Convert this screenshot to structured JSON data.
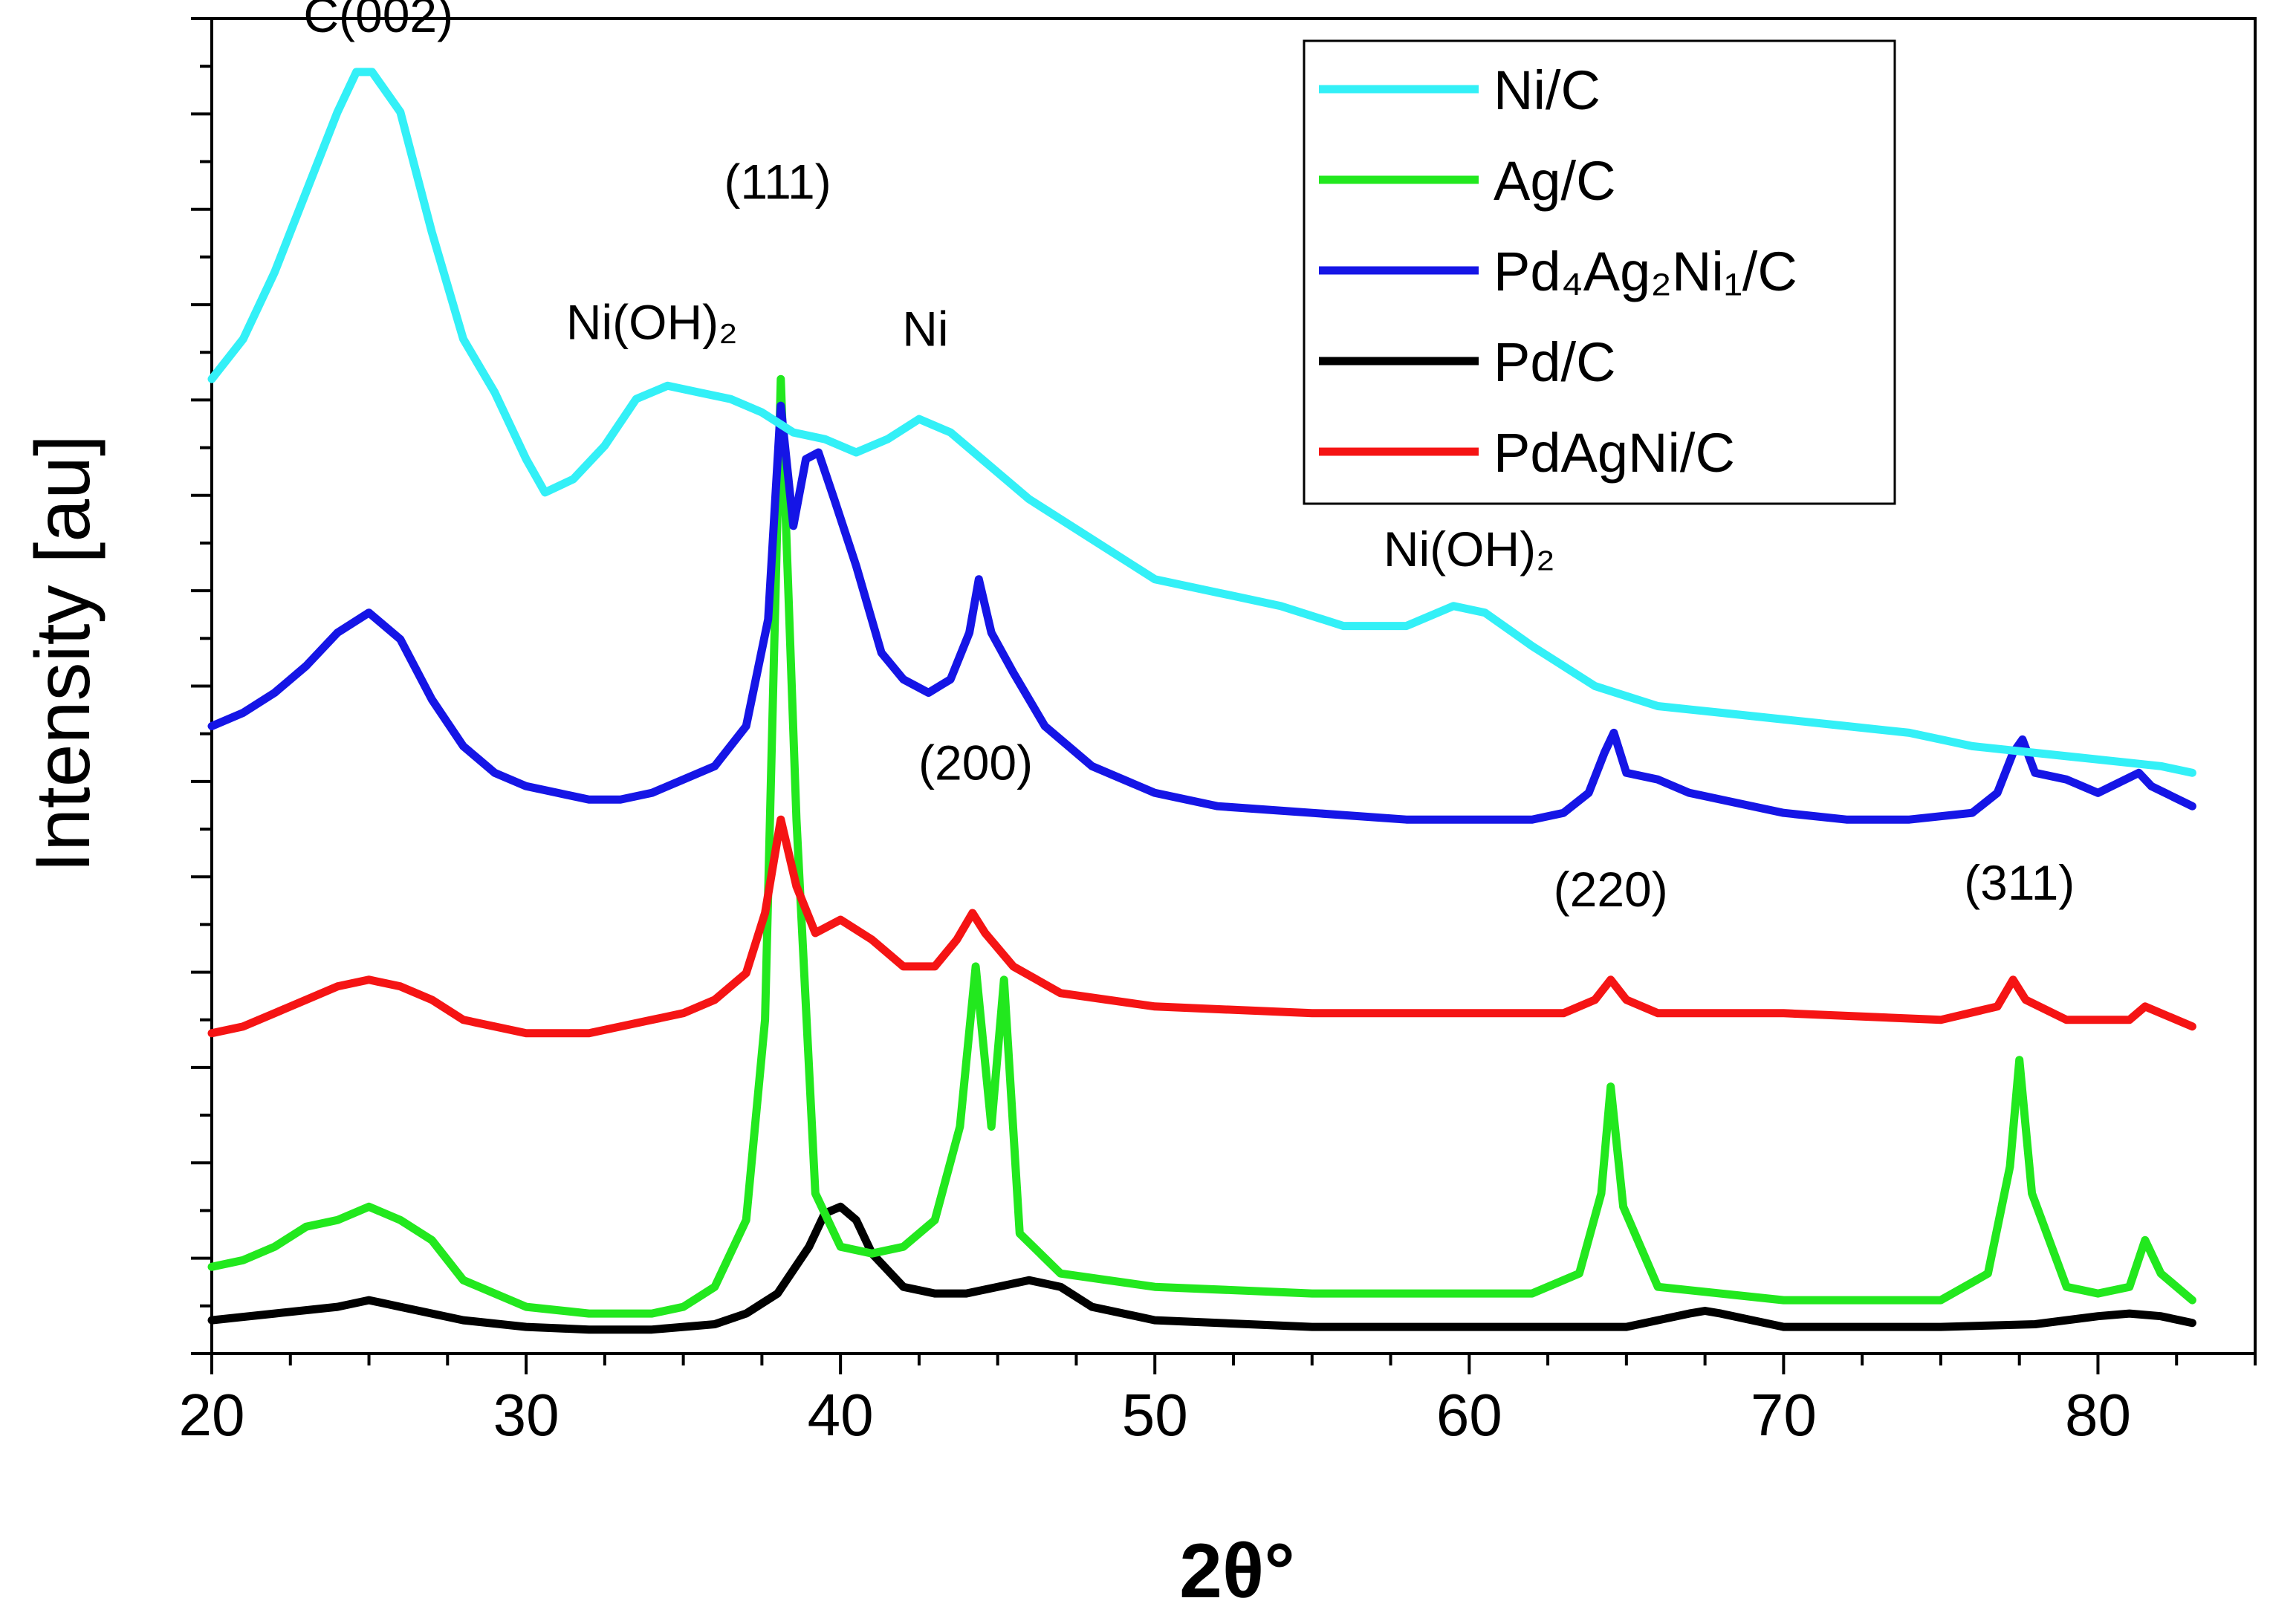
{
  "chart_data": {
    "type": "line",
    "title": "",
    "xlabel": "2θ°",
    "ylabel": "Intensity [au]",
    "xlim": [
      20,
      85
    ],
    "ylim": [
      0,
      100
    ],
    "xticks": [
      20,
      30,
      40,
      50,
      60,
      70,
      80
    ],
    "y_tick_labels_shown": false,
    "grid": false,
    "legend_position": "top-right",
    "series": [
      {
        "name": "Ni/C",
        "color": "#33f0f7",
        "points": [
          [
            20,
            73
          ],
          [
            21,
            76
          ],
          [
            22,
            81
          ],
          [
            23,
            87
          ],
          [
            24,
            93
          ],
          [
            24.6,
            96
          ],
          [
            25.1,
            96
          ],
          [
            26,
            93
          ],
          [
            27,
            84
          ],
          [
            28,
            76
          ],
          [
            29,
            72
          ],
          [
            30,
            67
          ],
          [
            30.6,
            64.5
          ],
          [
            31.5,
            65.5
          ],
          [
            32.5,
            68
          ],
          [
            33.5,
            71.5
          ],
          [
            34.5,
            72.5
          ],
          [
            35.5,
            72
          ],
          [
            36.5,
            71.5
          ],
          [
            37.5,
            70.5
          ],
          [
            38.5,
            69
          ],
          [
            39.5,
            68.5
          ],
          [
            40.5,
            67.5
          ],
          [
            41.5,
            68.5
          ],
          [
            42.5,
            70
          ],
          [
            43.5,
            69
          ],
          [
            44.5,
            67
          ],
          [
            46,
            64
          ],
          [
            48,
            61
          ],
          [
            50,
            58
          ],
          [
            52,
            57
          ],
          [
            54,
            56
          ],
          [
            56,
            54.5
          ],
          [
            58,
            54.5
          ],
          [
            59.5,
            56
          ],
          [
            60.5,
            55.5
          ],
          [
            62,
            53
          ],
          [
            64,
            50
          ],
          [
            66,
            48.5
          ],
          [
            68,
            48
          ],
          [
            70,
            47.5
          ],
          [
            72,
            47
          ],
          [
            74,
            46.5
          ],
          [
            76,
            45.5
          ],
          [
            78,
            45
          ],
          [
            80,
            44.5
          ],
          [
            82,
            44
          ],
          [
            83,
            43.5
          ]
        ]
      },
      {
        "name": "Ag/C",
        "color": "#22e81e",
        "points": [
          [
            20,
            6.5
          ],
          [
            21,
            7
          ],
          [
            22,
            8
          ],
          [
            23,
            9.5
          ],
          [
            24,
            10
          ],
          [
            25,
            11
          ],
          [
            26,
            10
          ],
          [
            27,
            8.5
          ],
          [
            28,
            5.5
          ],
          [
            30,
            3.5
          ],
          [
            32,
            3
          ],
          [
            34,
            3
          ],
          [
            35,
            3.5
          ],
          [
            36,
            5
          ],
          [
            37,
            10
          ],
          [
            37.6,
            25
          ],
          [
            38.1,
            73
          ],
          [
            38.6,
            40
          ],
          [
            39.2,
            12
          ],
          [
            40,
            8
          ],
          [
            41,
            7.5
          ],
          [
            42,
            8
          ],
          [
            43,
            10
          ],
          [
            43.8,
            17
          ],
          [
            44.3,
            29
          ],
          [
            44.8,
            17
          ],
          [
            45.2,
            28
          ],
          [
            45.7,
            9
          ],
          [
            47,
            6
          ],
          [
            50,
            5
          ],
          [
            55,
            4.5
          ],
          [
            60,
            4.5
          ],
          [
            62,
            4.5
          ],
          [
            63.5,
            6
          ],
          [
            64.2,
            12
          ],
          [
            64.5,
            20
          ],
          [
            64.9,
            11
          ],
          [
            66,
            5
          ],
          [
            70,
            4
          ],
          [
            75,
            4
          ],
          [
            76.5,
            6
          ],
          [
            77.2,
            14
          ],
          [
            77.5,
            22
          ],
          [
            77.9,
            12
          ],
          [
            79,
            5
          ],
          [
            80,
            4.5
          ],
          [
            81,
            5
          ],
          [
            81.5,
            8.5
          ],
          [
            82,
            6
          ],
          [
            83,
            4
          ]
        ]
      },
      {
        "name": "Pd₄Ag₂Ni₁/C",
        "color": "#1515e6",
        "points": [
          [
            20,
            47
          ],
          [
            21,
            48
          ],
          [
            22,
            49.5
          ],
          [
            23,
            51.5
          ],
          [
            24,
            54
          ],
          [
            25,
            55.5
          ],
          [
            26,
            53.5
          ],
          [
            27,
            49
          ],
          [
            28,
            45.5
          ],
          [
            29,
            43.5
          ],
          [
            30,
            42.5
          ],
          [
            31,
            42
          ],
          [
            32,
            41.5
          ],
          [
            33,
            41.5
          ],
          [
            34,
            42
          ],
          [
            35,
            43
          ],
          [
            36,
            44
          ],
          [
            37,
            47
          ],
          [
            37.7,
            55
          ],
          [
            38.1,
            71
          ],
          [
            38.5,
            62
          ],
          [
            38.9,
            67
          ],
          [
            39.3,
            67.5
          ],
          [
            39.8,
            64
          ],
          [
            40.5,
            59
          ],
          [
            41.3,
            52.5
          ],
          [
            42,
            50.5
          ],
          [
            42.8,
            49.5
          ],
          [
            43.5,
            50.5
          ],
          [
            44.1,
            54
          ],
          [
            44.4,
            58
          ],
          [
            44.8,
            54
          ],
          [
            45.5,
            51
          ],
          [
            46.5,
            47
          ],
          [
            48,
            44
          ],
          [
            50,
            42
          ],
          [
            52,
            41
          ],
          [
            55,
            40.5
          ],
          [
            58,
            40
          ],
          [
            60,
            40
          ],
          [
            62,
            40
          ],
          [
            63,
            40.5
          ],
          [
            63.8,
            42
          ],
          [
            64.3,
            45
          ],
          [
            64.6,
            46.5
          ],
          [
            65,
            43.5
          ],
          [
            66,
            43
          ],
          [
            67,
            42
          ],
          [
            68,
            41.5
          ],
          [
            70,
            40.5
          ],
          [
            72,
            40
          ],
          [
            74,
            40
          ],
          [
            76,
            40.5
          ],
          [
            76.8,
            42
          ],
          [
            77.3,
            45
          ],
          [
            77.6,
            46
          ],
          [
            78,
            43.5
          ],
          [
            79,
            43
          ],
          [
            80,
            42
          ],
          [
            81.3,
            43.5
          ],
          [
            81.7,
            42.5
          ],
          [
            83,
            41
          ]
        ]
      },
      {
        "name": "Pd/C",
        "color": "#000000",
        "points": [
          [
            20,
            2.5
          ],
          [
            22,
            3
          ],
          [
            24,
            3.5
          ],
          [
            25,
            4
          ],
          [
            26,
            3.5
          ],
          [
            27,
            3
          ],
          [
            28,
            2.5
          ],
          [
            30,
            2
          ],
          [
            32,
            1.8
          ],
          [
            34,
            1.8
          ],
          [
            35,
            2
          ],
          [
            36,
            2.2
          ],
          [
            37,
            3
          ],
          [
            38,
            4.5
          ],
          [
            39,
            8
          ],
          [
            39.5,
            10.5
          ],
          [
            40,
            11
          ],
          [
            40.5,
            10
          ],
          [
            41,
            7.5
          ],
          [
            42,
            5
          ],
          [
            43,
            4.5
          ],
          [
            44,
            4.5
          ],
          [
            45,
            5
          ],
          [
            46,
            5.5
          ],
          [
            47,
            5
          ],
          [
            48,
            3.5
          ],
          [
            50,
            2.5
          ],
          [
            55,
            2
          ],
          [
            60,
            2
          ],
          [
            65,
            2
          ],
          [
            66,
            2.5
          ],
          [
            67,
            3
          ],
          [
            67.5,
            3.2
          ],
          [
            68,
            3
          ],
          [
            69,
            2.5
          ],
          [
            70,
            2
          ],
          [
            75,
            2
          ],
          [
            78,
            2.2
          ],
          [
            80,
            2.8
          ],
          [
            81,
            3
          ],
          [
            82,
            2.8
          ],
          [
            83,
            2.3
          ]
        ]
      },
      {
        "name": "PdAgNi/C",
        "color": "#f51414",
        "points": [
          [
            20,
            24
          ],
          [
            21,
            24.5
          ],
          [
            22,
            25.5
          ],
          [
            23,
            26.5
          ],
          [
            24,
            27.5
          ],
          [
            25,
            28
          ],
          [
            26,
            27.5
          ],
          [
            27,
            26.5
          ],
          [
            28,
            25
          ],
          [
            29,
            24.5
          ],
          [
            30,
            24
          ],
          [
            31,
            24
          ],
          [
            32,
            24
          ],
          [
            33,
            24.5
          ],
          [
            34,
            25
          ],
          [
            35,
            25.5
          ],
          [
            36,
            26.5
          ],
          [
            37,
            28.5
          ],
          [
            37.6,
            33
          ],
          [
            38.1,
            40
          ],
          [
            38.6,
            35
          ],
          [
            39.2,
            31.5
          ],
          [
            40,
            32.5
          ],
          [
            41,
            31
          ],
          [
            42,
            29
          ],
          [
            43,
            29
          ],
          [
            43.7,
            31
          ],
          [
            44.2,
            33
          ],
          [
            44.6,
            31.5
          ],
          [
            45.5,
            29
          ],
          [
            47,
            27
          ],
          [
            50,
            26
          ],
          [
            55,
            25.5
          ],
          [
            60,
            25.5
          ],
          [
            63,
            25.5
          ],
          [
            64,
            26.5
          ],
          [
            64.5,
            28
          ],
          [
            65,
            26.5
          ],
          [
            66,
            25.5
          ],
          [
            70,
            25.5
          ],
          [
            75,
            25
          ],
          [
            76.8,
            26
          ],
          [
            77.3,
            28
          ],
          [
            77.7,
            26.5
          ],
          [
            79,
            25
          ],
          [
            81,
            25
          ],
          [
            81.5,
            26
          ],
          [
            82,
            25.5
          ],
          [
            83,
            24.5
          ]
        ]
      }
    ],
    "legend": {
      "entries": [
        {
          "label": "Ni/C",
          "color": "#33f0f7"
        },
        {
          "label": "Ag/C",
          "color": "#22e81e"
        },
        {
          "label": "Pd₄Ag₂Ni₁/C",
          "color": "#1515e6"
        },
        {
          "label": "Pd/C",
          "color": "#000000"
        },
        {
          "label": "PdAgNi/C",
          "color": "#f51414"
        }
      ]
    },
    "annotations": [
      {
        "text": "C(002)",
        "x": 25.3,
        "y": 99
      },
      {
        "text": "Ni(OH)₂",
        "x": 34,
        "y": 76
      },
      {
        "text": "(111)",
        "x": 38.0,
        "y": 86.5
      },
      {
        "text": "Ni",
        "x": 42.7,
        "y": 75.5
      },
      {
        "text": "(200)",
        "x": 44.3,
        "y": 43
      },
      {
        "text": "Ni(OH)₂",
        "x": 60.0,
        "y": 59
      },
      {
        "text": "(220)",
        "x": 64.5,
        "y": 33.5
      },
      {
        "text": "(311)",
        "x": 77.5,
        "y": 34
      }
    ]
  }
}
